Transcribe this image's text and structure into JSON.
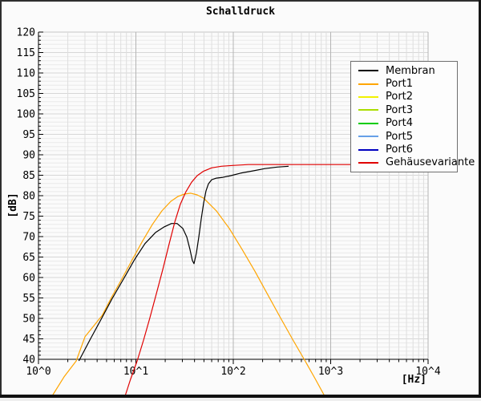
{
  "window": {
    "title": "Schalldruck"
  },
  "chart_data": {
    "type": "line",
    "title": "Schalldruck",
    "xlabel": "[Hz]",
    "ylabel": "[dB]",
    "x_scale": "log",
    "x_range_hz": [
      1,
      10000
    ],
    "y_range_db": [
      40,
      120
    ],
    "y_major_step_db": 5,
    "y_minor_step_db": 1,
    "grid": true,
    "legend_position": "top-right",
    "x_ticks": [
      "10^0",
      "10^1",
      "10^2",
      "10^3",
      "10^4"
    ],
    "y_ticks": [
      "120",
      "115",
      "110",
      "105",
      "100",
      "95",
      "90",
      "85",
      "80",
      "75",
      "70",
      "65",
      "60",
      "55",
      "50",
      "45",
      "40"
    ],
    "series": [
      {
        "name": "Membran",
        "color": "#000000",
        "points": [
          [
            2.6,
            39.6
          ],
          [
            3.4,
            44.9
          ],
          [
            4.4,
            49.8
          ],
          [
            5.7,
            54.8
          ],
          [
            7.5,
            59.7
          ],
          [
            9.7,
            64.4
          ],
          [
            12.4,
            68.3
          ],
          [
            15.9,
            71.0
          ],
          [
            19.6,
            72.4
          ],
          [
            23.2,
            73.2
          ],
          [
            26.5,
            73.2
          ],
          [
            30.3,
            72.0
          ],
          [
            33.3,
            69.9
          ],
          [
            35.9,
            66.9
          ],
          [
            38.0,
            64.2
          ],
          [
            39.5,
            63.4
          ],
          [
            41.8,
            66.0
          ],
          [
            44.3,
            69.9
          ],
          [
            46.9,
            74.3
          ],
          [
            49.6,
            78.2
          ],
          [
            52.5,
            81.2
          ],
          [
            55.6,
            82.9
          ],
          [
            60.0,
            83.9
          ],
          [
            67.1,
            84.3
          ],
          [
            78.2,
            84.5
          ],
          [
            94.4,
            84.9
          ],
          [
            118.6,
            85.5
          ],
          [
            154.6,
            86.0
          ],
          [
            209,
            86.6
          ],
          [
            283,
            87.0
          ],
          [
            370,
            87.2
          ]
        ]
      },
      {
        "name": "Port1",
        "color": "#ffa500",
        "points": [
          [
            1.33,
            30.4
          ],
          [
            1.83,
            35.7
          ],
          [
            2.44,
            39.6
          ],
          [
            3.0,
            45.5
          ],
          [
            4.5,
            50.7
          ],
          [
            5.7,
            55.4
          ],
          [
            7.2,
            59.7
          ],
          [
            9.2,
            64.4
          ],
          [
            11.7,
            68.9
          ],
          [
            14.8,
            73.0
          ],
          [
            18.5,
            76.3
          ],
          [
            22.8,
            78.6
          ],
          [
            27.0,
            79.8
          ],
          [
            31.5,
            80.4
          ],
          [
            36.6,
            80.6
          ],
          [
            42.6,
            80.2
          ],
          [
            49.6,
            79.4
          ],
          [
            67.1,
            76.3
          ],
          [
            91.0,
            72.0
          ],
          [
            123,
            66.9
          ],
          [
            167,
            61.5
          ],
          [
            226,
            55.8
          ],
          [
            306,
            50.1
          ],
          [
            406,
            44.9
          ],
          [
            540,
            39.8
          ],
          [
            691,
            35.3
          ],
          [
            885,
            30.6
          ]
        ]
      },
      {
        "name": "Port2",
        "color": "#f2f200",
        "points": []
      },
      {
        "name": "Port3",
        "color": "#aadd00",
        "points": []
      },
      {
        "name": "Port4",
        "color": "#00cc00",
        "points": []
      },
      {
        "name": "Port5",
        "color": "#66a0e8",
        "points": []
      },
      {
        "name": "Port6",
        "color": "#0000c0",
        "points": []
      },
      {
        "name": "Gehäusevariante",
        "color": "#e00000",
        "points": [
          [
            7.6,
            30.4
          ],
          [
            8.8,
            35.1
          ],
          [
            10.3,
            39.6
          ],
          [
            12.0,
            44.7
          ],
          [
            13.9,
            50.1
          ],
          [
            16.2,
            56.0
          ],
          [
            18.9,
            62.0
          ],
          [
            22.0,
            68.3
          ],
          [
            25.1,
            73.6
          ],
          [
            28.6,
            77.9
          ],
          [
            32.7,
            81.0
          ],
          [
            37.3,
            83.3
          ],
          [
            42.6,
            84.9
          ],
          [
            49.6,
            86.0
          ],
          [
            60.0,
            86.8
          ],
          [
            75.3,
            87.2
          ],
          [
            98.2,
            87.4
          ],
          [
            143,
            87.6
          ],
          [
            306,
            87.6
          ],
          [
            10000,
            87.6
          ]
        ]
      }
    ]
  }
}
